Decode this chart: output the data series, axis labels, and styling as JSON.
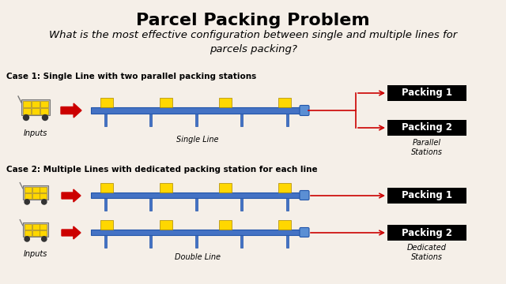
{
  "title": "Parcel Packing Problem",
  "subtitle": "What is the most effective configuration between single and multiple lines for\nparcels packing?",
  "case1_label": "Case 1: Single Line with two parallel packing stations",
  "case2_label": "Case 2: Multiple Lines with dedicated packing station for each line",
  "bg_color": "#F5EFE8",
  "title_fontsize": 16,
  "subtitle_fontsize": 9.5,
  "case_fontsize": 7.5,
  "label_fontsize": 7,
  "packing_fontsize": 8.5,
  "packing1_label": "Packing 1",
  "packing2_label": "Packing 2",
  "single_line_label": "Single Line",
  "double_line_label": "Double Line",
  "inputs_label": "Inputs",
  "parallel_stations_label": "Parallel\nStations",
  "dedicated_stations_label": "Dedicated\nStations",
  "conveyor_color": "#4472C4",
  "conveyor_edge": "#2255AA",
  "conveyor_cap_color": "#5B8FD4",
  "box_color": "#FFD700",
  "box_edge": "#AA8800",
  "packing_bg": "#000000",
  "packing_text_color": "#FFFFFF",
  "arrow_color": "#CC0000",
  "cart_body_color": "#BBBBBB",
  "cart_edge_color": "#777777",
  "leg_color": "#3366BB",
  "wheel_color": "#333333"
}
